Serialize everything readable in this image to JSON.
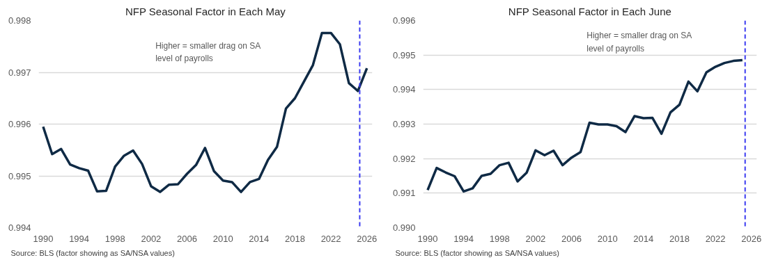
{
  "chart_data": [
    {
      "type": "line",
      "title": "NFP Seasonal Factor in Each May",
      "x": [
        1990,
        1991,
        1992,
        1993,
        1994,
        1995,
        1996,
        1997,
        1998,
        1999,
        2000,
        2001,
        2002,
        2003,
        2004,
        2005,
        2006,
        2007,
        2008,
        2009,
        2010,
        2011,
        2012,
        2013,
        2014,
        2015,
        2016,
        2017,
        2018,
        2019,
        2020,
        2021,
        2022,
        2023,
        2024,
        2025,
        2026
      ],
      "series": [
        {
          "color": "#0f2a45",
          "values": [
            0.99595,
            0.99542,
            0.99552,
            0.99522,
            0.99515,
            0.9951,
            0.9947,
            0.99471,
            0.99518,
            0.99539,
            0.99549,
            0.99523,
            0.9948,
            0.99469,
            0.99483,
            0.99484,
            0.99504,
            0.99521,
            0.99554,
            0.99509,
            0.99491,
            0.99488,
            0.99469,
            0.99488,
            0.99494,
            0.99531,
            0.99556,
            0.9963,
            0.9965,
            0.99682,
            0.99714,
            0.99776,
            0.99776,
            0.99754,
            0.99679,
            0.99664,
            0.99708
          ]
        }
      ],
      "xlim": [
        1989.5,
        2026.6
      ],
      "ylim": [
        0.994,
        0.998
      ],
      "xticks": [
        1990,
        1994,
        1998,
        2002,
        2006,
        2010,
        2014,
        2018,
        2022,
        2026
      ],
      "yticks": [
        {
          "value": 0.994,
          "label": "0.994"
        },
        {
          "value": 0.995,
          "label": "0.995"
        },
        {
          "value": 0.996,
          "label": "0.996"
        },
        {
          "value": 0.997,
          "label": "0.997"
        },
        {
          "value": 0.998,
          "label": "0.998"
        }
      ],
      "grid": "y",
      "ref_lines": [
        {
          "axis": "x",
          "value": 2025.2,
          "color": "#3b3bf0",
          "line_style": "dashed"
        }
      ],
      "annotations": [
        "Higher = smaller drag on SA\nlevel of payrolls",
        "Source: BLS (factor showing as SA/NSA values)"
      ]
    },
    {
      "type": "line",
      "title": "NFP Seasonal Factor in Each June",
      "x": [
        1990,
        1991,
        1992,
        1993,
        1994,
        1995,
        1996,
        1997,
        1998,
        1999,
        2000,
        2001,
        2002,
        2003,
        2004,
        2005,
        2006,
        2007,
        2008,
        2009,
        2010,
        2011,
        2012,
        2013,
        2014,
        2015,
        2016,
        2017,
        2018,
        2019,
        2020,
        2021,
        2022,
        2023,
        2024,
        2025
      ],
      "series": [
        {
          "color": "#0f2a45",
          "values": [
            0.99109,
            0.99173,
            0.9916,
            0.99149,
            0.99105,
            0.99114,
            0.9915,
            0.99156,
            0.99181,
            0.99188,
            0.99134,
            0.99159,
            0.99224,
            0.9921,
            0.99223,
            0.99181,
            0.99203,
            0.99219,
            0.99304,
            0.99299,
            0.99299,
            0.99294,
            0.99277,
            0.99323,
            0.99317,
            0.99318,
            0.99272,
            0.99334,
            0.99356,
            0.99423,
            0.99395,
            0.9945,
            0.99466,
            0.99477,
            0.99483,
            0.99485
          ]
        }
      ],
      "xlim": [
        1989.5,
        2026.6
      ],
      "ylim": [
        0.99,
        0.996
      ],
      "xticks": [
        1990,
        1994,
        1998,
        2002,
        2006,
        2010,
        2014,
        2018,
        2022,
        2026
      ],
      "yticks": [
        {
          "value": 0.99,
          "label": "0.990"
        },
        {
          "value": 0.991,
          "label": "0.991"
        },
        {
          "value": 0.992,
          "label": "0.992"
        },
        {
          "value": 0.993,
          "label": "0.993"
        },
        {
          "value": 0.994,
          "label": "0.994"
        },
        {
          "value": 0.995,
          "label": "0.995"
        },
        {
          "value": 0.996,
          "label": "0.996"
        }
      ],
      "grid": "y",
      "ref_lines": [
        {
          "axis": "x",
          "value": 2025.3,
          "color": "#3b3bf0",
          "line_style": "dashed"
        }
      ],
      "annotations": [
        "Higher = smaller drag on SA\nlevel of payrolls",
        "Source: BLS (factor showing as SA/NSA values)"
      ]
    }
  ]
}
